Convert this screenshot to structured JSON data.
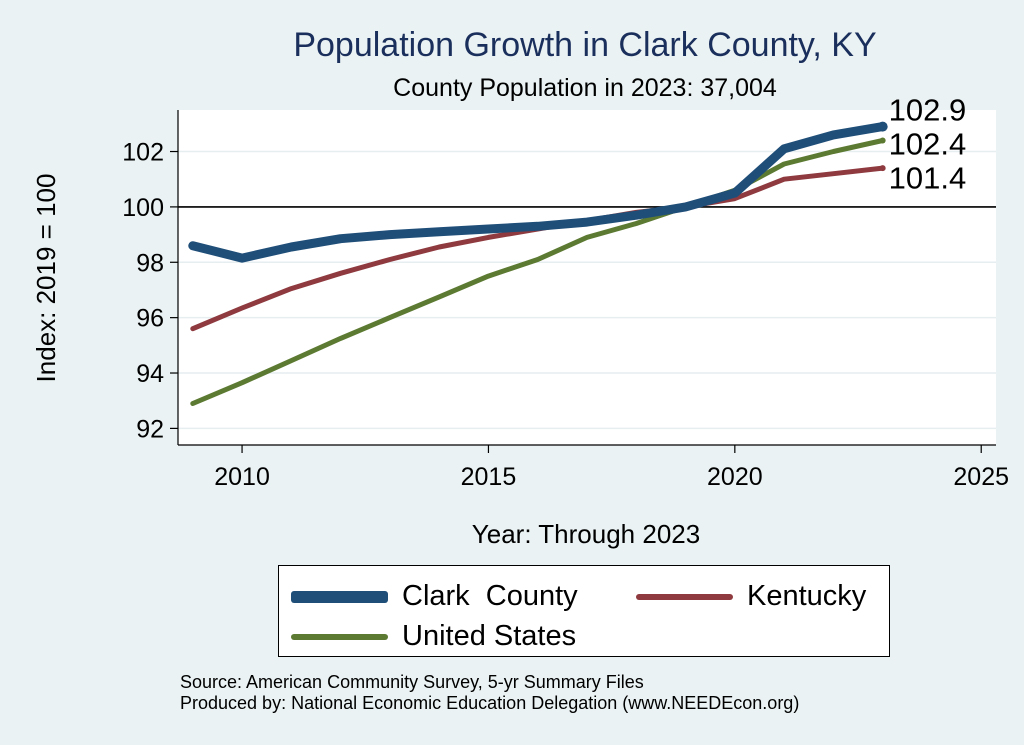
{
  "chart_data": {
    "type": "line",
    "title": "Population Growth in Clark County, KY",
    "subtitle": "County Population in 2023: 37,004",
    "xlabel": "Year: Through 2023",
    "ylabel": "Index: 2019 = 100",
    "xlim": [
      2008.7,
      2025.3
    ],
    "ylim": [
      91.4,
      103.5
    ],
    "xticks": [
      2010,
      2015,
      2020,
      2025
    ],
    "yticks": [
      92,
      94,
      96,
      98,
      100,
      102
    ],
    "reference_line": 100,
    "grid": true,
    "x": [
      2009,
      2010,
      2011,
      2012,
      2013,
      2014,
      2015,
      2016,
      2017,
      2018,
      2019,
      2020,
      2021,
      2022,
      2023
    ],
    "series": [
      {
        "name": "Clark  County",
        "color": "#1f4e79",
        "values": [
          98.6,
          98.15,
          98.55,
          98.85,
          99.0,
          99.1,
          99.2,
          99.3,
          99.45,
          99.7,
          100.0,
          100.5,
          102.1,
          102.6,
          102.9
        ],
        "end_label": "102.9"
      },
      {
        "name": "Kentucky",
        "color": "#8e3a3f",
        "values": [
          95.6,
          96.35,
          97.05,
          97.6,
          98.1,
          98.55,
          98.9,
          99.2,
          99.5,
          99.8,
          100.0,
          100.3,
          101.0,
          101.2,
          101.4
        ],
        "end_label": "101.4"
      },
      {
        "name": "United States",
        "color": "#5c7a32",
        "values": [
          92.9,
          93.65,
          94.45,
          95.25,
          96.0,
          96.75,
          97.5,
          98.1,
          98.9,
          99.4,
          100.0,
          100.6,
          101.55,
          102.0,
          102.4
        ],
        "end_label": "102.4"
      }
    ],
    "legend_position": "bottom"
  },
  "source_lines": [
    "Source: American Community Survey, 5-yr Summary Files",
    "Produced by: National Economic Education Delegation (www.NEEDEcon.org)"
  ]
}
